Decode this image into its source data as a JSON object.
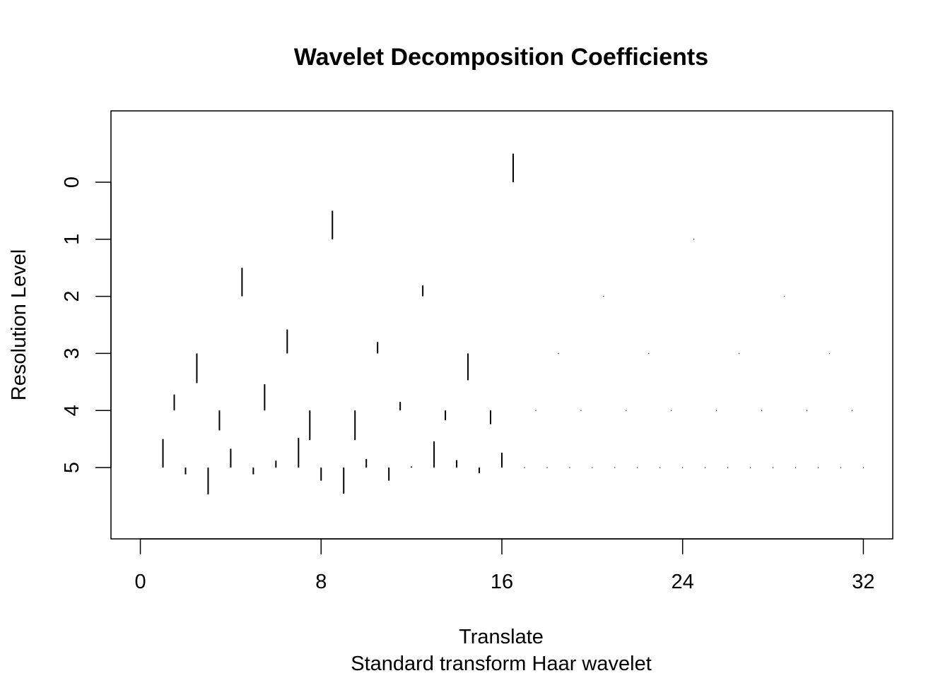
{
  "chart_data": {
    "type": "wavelet-coefficients",
    "title": "Wavelet Decomposition Coefficients",
    "xlabel": "Translate",
    "ylabel": "Resolution Level",
    "subtitle": "Standard transform Haar wavelet",
    "x_ticks": [
      "0",
      "8",
      "16",
      "24",
      "32"
    ],
    "x_tick_values": [
      0,
      8,
      16,
      24,
      32
    ],
    "y_ticks": [
      "0",
      "1",
      "2",
      "3",
      "4",
      "5"
    ],
    "y_tick_values": [
      0,
      1,
      2,
      3,
      4,
      5
    ],
    "xlim": [
      -1.3,
      33.3
    ],
    "ylim": [
      6.25,
      -1.25
    ],
    "coefficient_scale": "bar length relative to level spacing (1 = one level); positive draws up, negative draws down",
    "levels": [
      {
        "level": 0,
        "coefficients": [
          0.5
        ]
      },
      {
        "level": 1,
        "coefficients": [
          0.5,
          0.0
        ]
      },
      {
        "level": 2,
        "coefficients": [
          0.5,
          0.19,
          0.0,
          0.0
        ]
      },
      {
        "level": 3,
        "coefficients": [
          -0.52,
          0.42,
          0.2,
          -0.47,
          0.0,
          0.0,
          0.0,
          0.0
        ]
      },
      {
        "level": 4,
        "coefficients": [
          0.28,
          -0.35,
          0.46,
          -0.52,
          -0.52,
          0.15,
          -0.17,
          -0.24,
          0.0,
          0.0,
          0.0,
          0.0,
          0.0,
          0.0,
          0.0,
          0.0
        ]
      },
      {
        "level": 5,
        "coefficients": [
          0.5,
          -0.12,
          -0.47,
          0.33,
          -0.12,
          0.12,
          0.52,
          -0.23,
          -0.46,
          0.15,
          -0.23,
          0.02,
          0.46,
          0.13,
          -0.1,
          0.26,
          0.0,
          0.0,
          0.0,
          0.0,
          0.0,
          0.0,
          0.0,
          0.0,
          0.0,
          0.0,
          0.0,
          0.0,
          0.0,
          0.0,
          0.0,
          0.0
        ]
      }
    ]
  }
}
